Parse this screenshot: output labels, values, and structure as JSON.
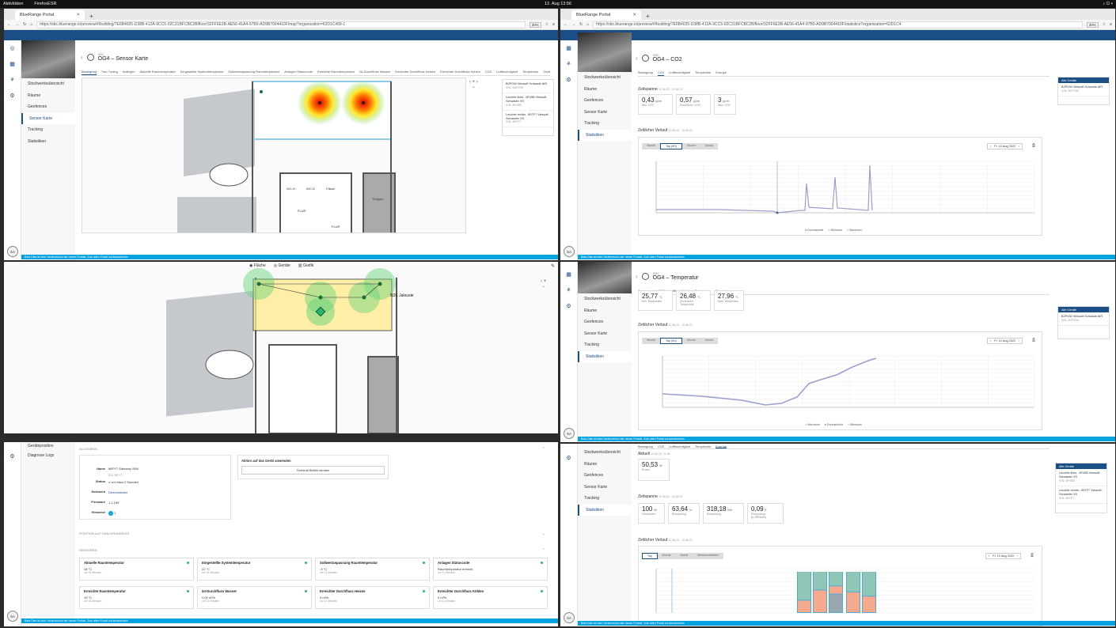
{
  "topbar": {
    "activities": "Aktivitäten",
    "app": "FirefoxESR",
    "clock": "12. Aug 13:56"
  },
  "w1": {
    "tab": "BlueRange Portal",
    "url": "https://sbc.bluerange.io/preview/#/building/7E6B4025-D38B-412A-9CC5-02C31BFCBC2B/floor/32FF6E3B-AE56-41A4-97B0-AD9B7004410F/map?organization=62D1C499-1",
    "zoom": "30%",
    "nav": [
      "Stockwerksübersicht",
      "Räume",
      "Geofences",
      "Sensor Karte",
      "Tracking",
      "Statistiken"
    ],
    "active": 3,
    "sup": "SBC",
    "title": "OG4 – Sensor Karte",
    "subtabs": [
      "Bewegung",
      "Tom-Tuning",
      "Anliegen",
      "Aktuelle Raumtemperatur",
      "Eingestellte Systemtemperatur",
      "Sollwertanpassung Raumtemperatur",
      "Anlagen Statuscode",
      "Erreichte Raumtemperatur",
      "Ist-Durchfluss Wasser",
      "Erreichter Durchfluss Heizen",
      "Erreichter Durchfluss Kühlen",
      "CO2",
      "Luftfeuchtigkeit",
      "Temperatur",
      "Geräusch Bodenbr."
    ],
    "devices": [
      {
        "n": "B2PGW Viessoft Schwade AIR",
        "s": "S/N: B2PGW"
      },
      {
        "n": "Leuchte links - 8F45B Viessoft-Schwader XS",
        "s": "S/N: 8F45B"
      },
      {
        "n": "Leuchte rechts - 897F7 Viessoft-Schwader XS",
        "s": "S/N: 897F7"
      }
    ],
    "rooms": [
      "WC-H",
      "WC-D",
      "Fäkali",
      "FLUR",
      "FLUR",
      "Treppen"
    ]
  },
  "w2": {
    "plegend": [
      "Fläche",
      "Geräte",
      "Grafik"
    ],
    "tag": "N2K Jalousie"
  },
  "w3": {
    "section_general": "ALLGEMEIN",
    "name_k": "Name",
    "name_v": "88FYT Gateway 0/68",
    "name_s": "S/N: 88FYT",
    "status_k": "Status",
    "status_v": "vor etwa 2 Stunden",
    "netz_k": "Netzwerk",
    "netz_v": "Demonstrator",
    "fw_k": "Firmware",
    "fw_v": "1.1.159",
    "hint_k": "Hinweise",
    "hint_v": "1",
    "action_title": "Aktion auf das Gerät anwenden",
    "action_btn": "Terminal Befehl senden",
    "section_pos": "POSITION AUF DEM GRUNDRISS",
    "section_sens": "SENSOREN",
    "nav": [
      "Geräteposition",
      "Diagnose Logs"
    ],
    "sensors": [
      {
        "t": "Aktuelle Raumtemperatur",
        "v": "18 °C",
        "m": "vor 18 Minuten"
      },
      {
        "t": "Eingestellte Systemtemperatur",
        "v": "22 °C",
        "m": "vor 18 Minuten"
      },
      {
        "t": "Sollwertanpassung Raumtemperatur",
        "v": "-3 °C",
        "m": "vor 11 Minuten"
      },
      {
        "t": "Anlagen Statuscode",
        "v": "Raumtemperatur erreicht",
        "m": "vor 11 Minuten"
      },
      {
        "t": "Erreichte Raumtemperatur",
        "v": "19 °C",
        "m": "vor 18 Minuten"
      },
      {
        "t": "Ist-Durchfluss Wasser",
        "v": "0.00 m³/h",
        "m": "vor 11 Minuten"
      },
      {
        "t": "Erreichter Durchfluss Heizen",
        "v": "0 m³/h",
        "m": "vor 11 Minuten"
      },
      {
        "t": "Erreichter Durchfluss Kühlen",
        "v": "0 m³/h",
        "m": "vor 11 Minuten"
      }
    ]
  },
  "r1": {
    "tab": "BlueRange Portal",
    "url": "https://sbc.bluerange.io/preview/#/building/7E6B4025-D38B-412A-9CC5-02C31BFCBC2B/floor/32FF6E3B-AE56-41A4-97B0-AD9B7004410F/statistics?organization=62D1C4",
    "zoom": "30%",
    "sup": "SBC",
    "title": "OG4 – CO2",
    "subtabs": [
      "Bewegung",
      "CO2",
      "Luftfeuchtigkeit",
      "Temperatur",
      "Energie"
    ],
    "zs": "Zeitspanne",
    "zs_d": "11.08.22 - 12.08.22",
    "cards": [
      {
        "v": "0,43",
        "u": "ppm",
        "l": "Min. CO2"
      },
      {
        "v": "0,57",
        "u": "ppm",
        "l": "Durchschn. CO2"
      },
      {
        "v": "3",
        "u": "ppm",
        "l": "Max. CO2"
      }
    ],
    "zv": "Zeitlicher Verlauf",
    "zv_d": "11.08.22 - 12.08.22",
    "seg": [
      "Stunde",
      "Tag (HD)",
      "Woche",
      "Monat"
    ],
    "date": "Fr. 12 Aug 2022",
    "legend": [
      "Durchschnitt",
      "Minimum",
      "Maximum"
    ],
    "panel_hd": "Alle Geräte",
    "panel_it": "B2PGW Viessoft Schwade AIR",
    "panel_s": "S/N: B2PGW"
  },
  "r2": {
    "sup": "SBC",
    "title": "OG4 – Temperatur",
    "subtabs": [
      "Bewegung",
      "CO2",
      "Luftfeuchtigkeit",
      "Temperatur",
      "Energie"
    ],
    "cards": [
      {
        "v": "25,77",
        "u": "°C",
        "l": "Min. Temperatur"
      },
      {
        "v": "26,48",
        "u": "°C",
        "l": "Durchschn. Temperatur"
      },
      {
        "v": "27,96",
        "u": "°C",
        "l": "Max. Temperatur"
      }
    ],
    "zv": "Zeitlicher Verlauf",
    "zv_d": "11.08.22 - 12.08.22",
    "seg": [
      "Stunde",
      "Tag (HD)",
      "Woche",
      "Monat"
    ],
    "date": "Fr. 12 Aug 2022",
    "legend": [
      "Maximum",
      "Durchschnitt",
      "Minimum"
    ],
    "panel_hd": "Alle Geräte",
    "panel_it": "B2PGW Viessoft Schwade AIR",
    "panel_s": "S/N: B2PGW"
  },
  "r3": {
    "subtabs": [
      "Bewegung",
      "CO2",
      "Luftfeuchtigkeit",
      "Temperatur",
      "Energie"
    ],
    "aktuell": "Aktuell",
    "aktuell_d": "12.08.22, 11:36",
    "now": {
      "v": "50,53",
      "u": "W",
      "l": "Power"
    },
    "zs": "Zeitspanne",
    "zs_d": "11.08.22 - 12.08.22",
    "cards": [
      {
        "v": "100",
        "u": "W",
        "l": "Höchstwert"
      },
      {
        "v": "63,64",
        "u": "%",
        "l": "Einsparung"
      },
      {
        "v": "318,18",
        "u": "Wh",
        "l": "Einsparung"
      },
      {
        "v": "0,09",
        "u": "€",
        "l": "Einsparung (0,30€/kWh)"
      }
    ],
    "zv": "Zeitlicher Verlauf",
    "zv_d": "11.08.22 - 12.08.22",
    "seg": [
      "Tag",
      "Woche",
      "Monat",
      "Benutzerdefiniert"
    ],
    "date": "Fr. 12 Aug 2022",
    "nav": [
      "Stockwerksübersicht",
      "Räume",
      "Geofences",
      "Sensor Karte",
      "Tracking",
      "Statistiken"
    ],
    "panel_hd": "Alle Geräte",
    "devices": [
      {
        "n": "Leuchte links - 8F45B Viessoft-Schwader XS",
        "s": "S/N: 8F45B"
      },
      {
        "n": "Leuchte rechts - 897F7 Viessoft-Schwader XS",
        "s": "S/N: 897F7"
      }
    ]
  },
  "footer": "Beta Dies ist eine Vorabversion der neuen Portals. Zum alten Portal zurückwechseln",
  "avatar": "SA",
  "colors": {
    "brand": "#1c4e86",
    "footer": "#00a3e0",
    "status": "#2bb673"
  }
}
